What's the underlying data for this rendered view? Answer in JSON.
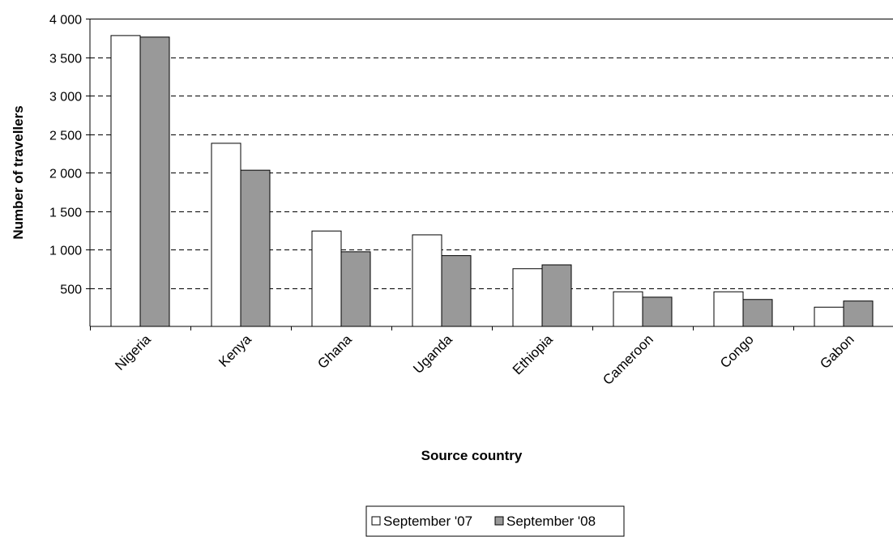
{
  "chart_data": {
    "type": "bar",
    "categories": [
      "Nigeria",
      "Kenya",
      "Ghana",
      "Uganda",
      "Ethiopia",
      "Cameroon",
      "Congo",
      "Gabon"
    ],
    "series": [
      {
        "name": "September '07",
        "values": [
          3780,
          2380,
          1240,
          1190,
          750,
          450,
          450,
          250
        ],
        "color": "#ffffff"
      },
      {
        "name": "September '08",
        "values": [
          3760,
          2030,
          970,
          920,
          800,
          380,
          350,
          330
        ],
        "color": "#999999"
      }
    ],
    "xlabel": "Source country",
    "ylabel": "Number of travellers",
    "ylim": [
      0,
      4000
    ],
    "yticks": [
      500,
      1000,
      1500,
      2000,
      2500,
      3000,
      3500,
      4000
    ],
    "ytick_labels": [
      "500",
      "1 000",
      "1 500",
      "2 000",
      "2 500",
      "3 000",
      "3 500",
      "4 000"
    ],
    "grid": "horizontal dashed",
    "legend_position": "bottom-center"
  }
}
